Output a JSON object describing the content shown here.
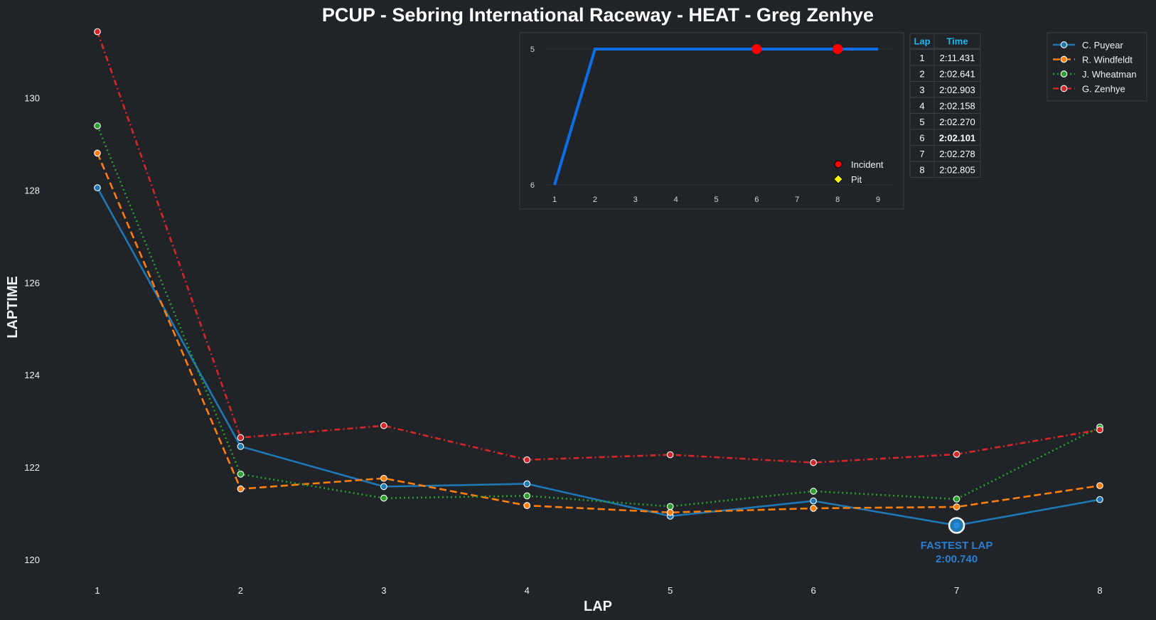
{
  "chart_data": [
    {
      "type": "line",
      "title": "PCUP - Sebring International Raceway - HEAT - Greg Zenhye",
      "xlabel": "LAP",
      "ylabel": "LAPTIME",
      "x": [
        1,
        2,
        3,
        4,
        5,
        6,
        7,
        8
      ],
      "xlim": [
        1,
        8
      ],
      "ylim": [
        119.8,
        131.5
      ],
      "yticks": [
        120,
        122,
        124,
        126,
        128,
        130
      ],
      "legend_position": "top-right",
      "series": [
        {
          "name": "C. Puyear",
          "color": "#1f77b4",
          "dash": "solid",
          "values": [
            128.05,
            122.45,
            121.58,
            121.64,
            120.94,
            121.27,
            120.74,
            121.3
          ]
        },
        {
          "name": "R. Windfeldt",
          "color": "#ff7f0e",
          "dash": "dashed",
          "values": [
            128.8,
            121.53,
            121.76,
            121.17,
            121.02,
            121.11,
            121.14,
            121.6
          ]
        },
        {
          "name": "J. Wheatman",
          "color": "#2ca02c",
          "dash": "dotted",
          "values": [
            129.39,
            121.85,
            121.33,
            121.38,
            121.15,
            121.48,
            121.31,
            122.87
          ]
        },
        {
          "name": "G. Zenhye",
          "color": "#d62728",
          "dash": "dashdot",
          "values": [
            131.43,
            122.64,
            122.9,
            122.16,
            122.27,
            122.1,
            122.28,
            122.81
          ]
        }
      ],
      "annotation": {
        "label": "FASTEST LAP",
        "value": "2:00.740",
        "x": 7,
        "y": 120.74,
        "series": "C. Puyear"
      }
    },
    {
      "type": "line",
      "title": "",
      "x": [
        1,
        2,
        3,
        4,
        5,
        6,
        7,
        8,
        9
      ],
      "values": [
        6,
        5,
        5,
        5,
        5,
        5,
        5,
        5,
        5
      ],
      "yticks": [
        5,
        6
      ],
      "y_inverted": true,
      "line_color": "#0a6fe6",
      "incidents": [
        6,
        8
      ],
      "pits": [],
      "legend": [
        {
          "label": "Incident",
          "color": "#ff0000",
          "marker": "circle"
        },
        {
          "label": "Pit",
          "color": "#ffff00",
          "marker": "diamond"
        }
      ]
    },
    {
      "type": "table",
      "columns": [
        "Lap",
        "Time"
      ],
      "rows": [
        [
          "1",
          "2:11.431"
        ],
        [
          "2",
          "2:02.641"
        ],
        [
          "3",
          "2:02.903"
        ],
        [
          "4",
          "2:02.158"
        ],
        [
          "5",
          "2:02.270"
        ],
        [
          "6",
          "2:02.101"
        ],
        [
          "7",
          "2:02.278"
        ],
        [
          "8",
          "2:02.805"
        ]
      ],
      "best_row": 5,
      "header_color": "#1fb6f0",
      "best_color": "#ffff00"
    }
  ]
}
